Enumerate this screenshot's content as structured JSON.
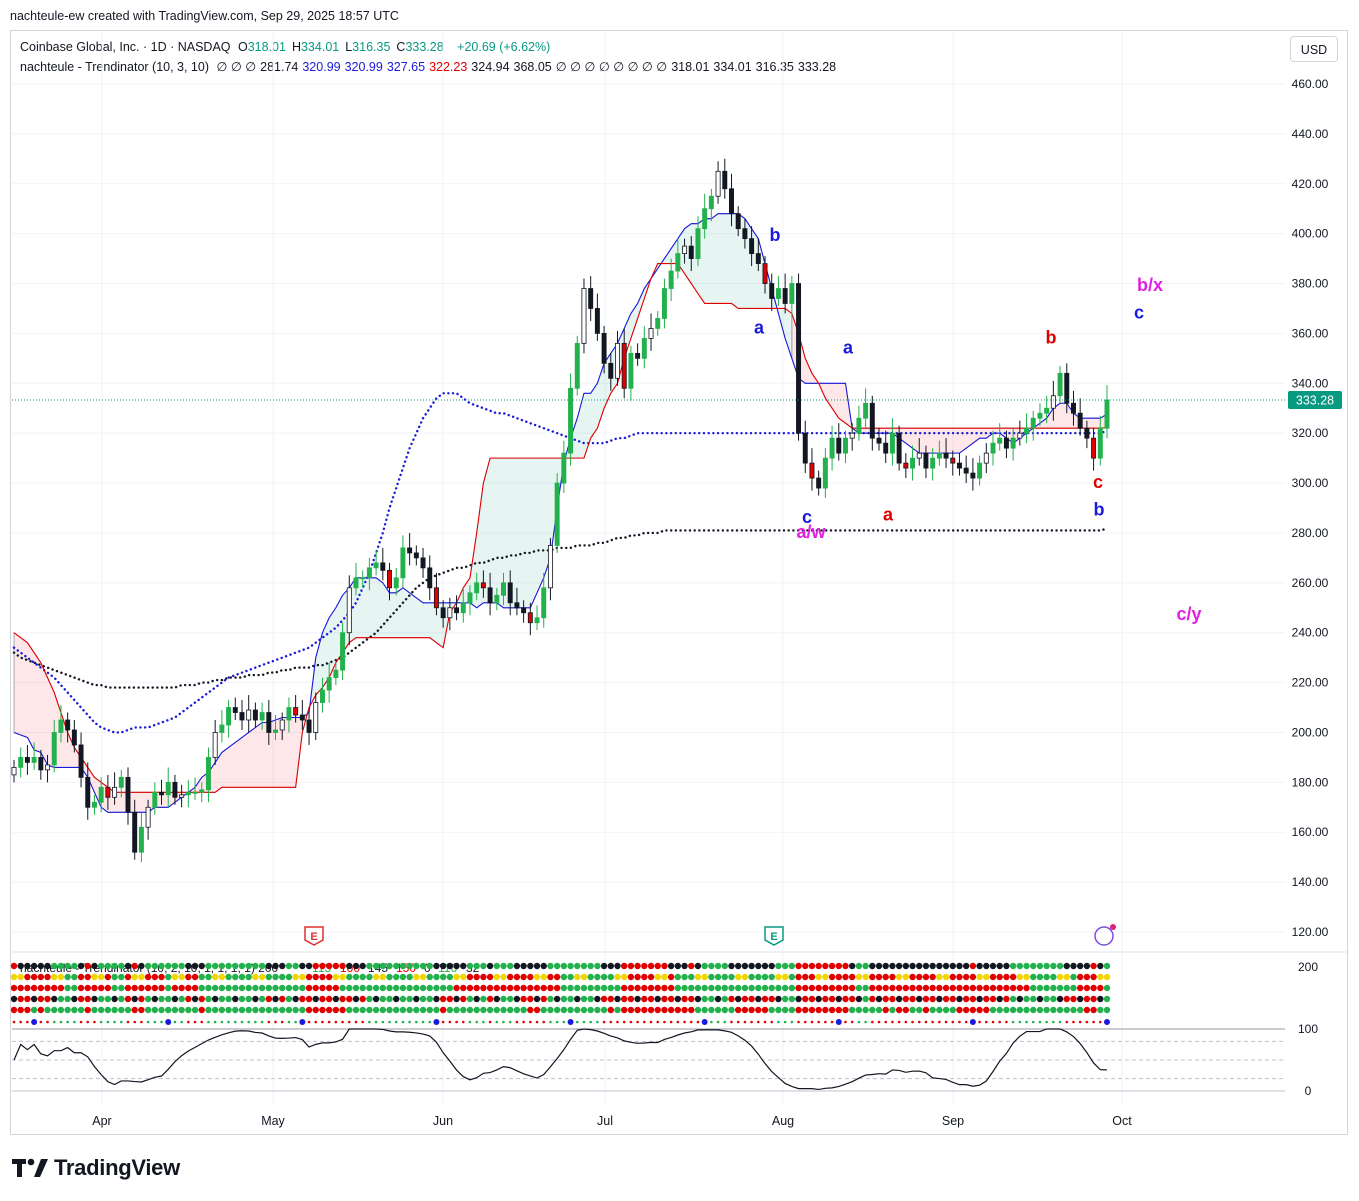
{
  "header": {
    "attribution": "nachteule-ew created with TradingView.com, Sep 29, 2025 18:57 UTC"
  },
  "legend": {
    "symbol": "Coinbase Global, Inc. · 1D · NASDAQ",
    "ohlc": [
      {
        "k": "O",
        "v": "318.01"
      },
      {
        "k": "H",
        "v": "334.01"
      },
      {
        "k": "L",
        "v": "316.35"
      },
      {
        "k": "C",
        "v": "333.28"
      }
    ],
    "change": "+20.69 (+6.62%)",
    "indicator_name": "nachteule - Trendinator (10, 3, 10)",
    "indicator_values": [
      {
        "v": "∅ ∅ ∅",
        "c": "#131722"
      },
      {
        "v": "281.74",
        "c": "#131722"
      },
      {
        "v": "320.99",
        "c": "#1a1adb"
      },
      {
        "v": "320.99",
        "c": "#1a1adb"
      },
      {
        "v": "327.65",
        "c": "#1a1adb"
      },
      {
        "v": "322.23",
        "c": "#e00000"
      },
      {
        "v": "324.94",
        "c": "#131722"
      },
      {
        "v": "368.05",
        "c": "#131722"
      },
      {
        "v": "∅ ∅ ∅ ∅ ∅ ∅ ∅ ∅",
        "c": "#131722"
      },
      {
        "v": "318.01",
        "c": "#131722"
      },
      {
        "v": "334.01",
        "c": "#131722"
      },
      {
        "v": "316.35",
        "c": "#131722"
      },
      {
        "v": "333.28",
        "c": "#131722"
      }
    ],
    "sub_indicator": "nachteule - Trendinator (10, 2, 10, 1, 1, 1, 1) 200",
    "sub_values": [
      "113",
      "100",
      "145",
      "150",
      "0",
      "116",
      "32"
    ]
  },
  "currency": "USD",
  "price_label": "333.28",
  "chart_data": {
    "type": "candlestick",
    "title": "Coinbase Global, Inc. · 1D · NASDAQ",
    "ylim": [
      115,
      465
    ],
    "y_ticks": [
      "460.00",
      "440.00",
      "420.00",
      "400.00",
      "380.00",
      "360.00",
      "340.00",
      "320.00",
      "300.00",
      "280.00",
      "260.00",
      "240.00",
      "220.00",
      "200.00",
      "180.00",
      "160.00",
      "140.00",
      "120.00"
    ],
    "x_ticks": [
      "Apr",
      "May",
      "Jun",
      "Jul",
      "Aug",
      "Sep",
      "Oct"
    ],
    "last_close": 333.28,
    "closes": [
      186,
      190,
      188,
      190,
      185,
      187,
      200,
      205,
      201,
      195,
      182,
      170,
      172,
      178,
      174,
      178,
      182,
      168,
      152,
      162,
      170,
      176,
      175,
      180,
      174,
      175,
      176,
      176,
      177,
      190,
      200,
      203,
      210,
      208,
      205,
      209,
      205,
      208,
      200,
      201,
      205,
      210,
      207,
      205,
      200,
      212,
      217,
      222,
      225,
      240,
      258,
      262,
      262,
      266,
      268,
      265,
      258,
      262,
      274,
      272,
      270,
      266,
      258,
      250,
      246,
      250,
      248,
      252,
      256,
      260,
      258,
      252,
      255,
      260,
      252,
      250,
      248,
      244,
      246,
      258,
      275,
      300,
      312,
      338,
      356,
      378,
      370,
      360,
      348,
      342,
      356,
      338,
      352,
      350,
      358,
      362,
      366,
      378,
      385,
      392,
      395,
      390,
      402,
      410,
      415,
      425,
      418,
      408,
      402,
      398,
      392,
      388,
      380,
      374,
      378,
      372,
      380,
      320,
      308,
      302,
      298,
      310,
      318,
      312,
      318,
      320,
      326,
      332,
      318,
      316,
      312,
      320,
      308,
      306,
      310,
      312,
      306,
      310,
      312,
      310,
      308,
      306,
      304,
      302,
      308,
      312,
      316,
      318,
      314,
      318,
      320,
      322,
      326,
      328,
      330,
      335,
      344,
      332,
      328,
      322,
      318,
      310,
      322,
      333.28
    ],
    "series": [
      {
        "name": "trend_blue",
        "values": [
          200,
          199,
          198,
          193,
          192,
          187,
          186,
          186,
          186,
          186,
          186,
          182,
          176,
          170,
          168,
          168,
          168,
          168,
          168,
          168,
          168,
          170,
          170,
          170,
          172,
          174,
          176,
          178,
          182,
          184,
          188,
          192,
          194,
          196,
          198,
          200,
          202,
          204,
          204,
          205,
          206,
          206,
          206,
          206,
          208,
          230,
          240,
          246,
          250,
          255,
          258,
          262,
          262,
          262,
          262,
          260,
          256,
          256,
          258,
          256,
          254,
          252,
          252,
          252,
          252,
          252,
          252,
          252,
          252,
          250,
          252,
          252,
          252,
          250,
          250,
          250,
          250,
          250,
          256,
          262,
          270,
          290,
          308,
          318,
          326,
          336,
          336,
          340,
          348,
          352,
          356,
          362,
          368,
          372,
          378,
          382,
          386,
          390,
          394,
          398,
          402,
          404,
          404,
          406,
          406,
          408,
          408,
          408,
          408,
          406,
          402,
          398,
          388,
          378,
          368,
          358,
          350,
          342,
          340,
          340,
          340,
          340,
          340,
          340,
          340,
          322,
          320,
          320,
          320,
          320,
          320,
          320,
          318,
          316,
          314,
          312,
          312,
          312,
          312,
          312,
          312,
          312,
          314,
          316,
          318,
          318,
          320,
          320,
          318,
          316,
          318,
          320,
          322,
          324,
          326,
          330,
          332,
          332,
          328,
          326,
          326,
          326,
          326,
          327.65
        ]
      },
      {
        "name": "trend_red",
        "values": [
          240,
          238,
          236,
          232,
          228,
          222,
          216,
          208,
          200,
          194,
          190,
          186,
          182,
          180,
          178,
          176,
          176,
          176,
          176,
          176,
          176,
          176,
          176,
          176,
          176,
          176,
          176,
          176,
          176,
          176,
          176,
          178,
          178,
          178,
          178,
          178,
          178,
          178,
          178,
          178,
          178,
          178,
          178,
          200,
          210,
          215,
          218,
          222,
          228,
          232,
          236,
          238,
          238,
          238,
          238,
          238,
          238,
          238,
          238,
          238,
          238,
          238,
          238,
          236,
          234,
          248,
          252,
          258,
          262,
          280,
          300,
          310,
          310,
          310,
          310,
          310,
          310,
          310,
          310,
          310,
          310,
          310,
          310,
          310,
          310,
          310,
          318,
          322,
          330,
          336,
          340,
          350,
          358,
          366,
          374,
          382,
          388,
          388,
          388,
          388,
          384,
          380,
          376,
          372,
          372,
          372,
          372,
          372,
          370,
          370,
          370,
          370,
          370,
          370,
          370,
          370,
          368,
          360,
          350,
          344,
          340,
          334,
          330,
          326,
          324,
          322,
          322,
          322,
          322,
          322,
          322,
          322,
          322,
          322,
          322,
          322,
          322,
          322,
          322,
          322,
          322,
          322,
          322,
          322,
          322,
          322,
          322,
          322,
          322,
          322,
          322,
          322,
          322,
          322,
          322,
          322,
          322,
          322,
          322,
          322,
          322,
          322,
          322,
          322.23
        ]
      },
      {
        "name": "ma_blue_dotted",
        "values": [
          234,
          232,
          230,
          228,
          226,
          224,
          222,
          219,
          216,
          213,
          210,
          207,
          204,
          202,
          201,
          200,
          200,
          201,
          202,
          202,
          202,
          203,
          204,
          205,
          206,
          208,
          210,
          212,
          214,
          216,
          218,
          220,
          222,
          223,
          224,
          225,
          226,
          227,
          228,
          229,
          230,
          231,
          232,
          233,
          234,
          236,
          238,
          240,
          242,
          245,
          248,
          252,
          258,
          264,
          272,
          280,
          290,
          298,
          306,
          314,
          320,
          326,
          330,
          334,
          336,
          336,
          336,
          334,
          332,
          331,
          330,
          329,
          328,
          328,
          327,
          326,
          325,
          324,
          323,
          322,
          321,
          320,
          319,
          318,
          317,
          316,
          316,
          316,
          316,
          317,
          318,
          318,
          319,
          320,
          320,
          320,
          320,
          320,
          320,
          320,
          320,
          320,
          320,
          320,
          320,
          320,
          320,
          320,
          320,
          320,
          320,
          320,
          320,
          320,
          320,
          320,
          320,
          320,
          320,
          320,
          320,
          320,
          320,
          320,
          320,
          320,
          320,
          320,
          320,
          320,
          320,
          320,
          320,
          320,
          320,
          320,
          320,
          320,
          320,
          320,
          320,
          320,
          320,
          320,
          320,
          320,
          320,
          320,
          320,
          320,
          320,
          320,
          320,
          320,
          320,
          320,
          320,
          320,
          320,
          320,
          320,
          320,
          320,
          320.99
        ]
      },
      {
        "name": "ma_black_dotted",
        "values": [
          232,
          230,
          229,
          228,
          227,
          226,
          225,
          224,
          223,
          222,
          221,
          220,
          219,
          219,
          218,
          218,
          218,
          218,
          218,
          218,
          218,
          218,
          218,
          218,
          218,
          219,
          219,
          219,
          220,
          220,
          221,
          221,
          222,
          222,
          222,
          223,
          223,
          223,
          224,
          224,
          225,
          225,
          226,
          226,
          226,
          227,
          227,
          228,
          229,
          230,
          232,
          234,
          236,
          238,
          240,
          243,
          246,
          249,
          252,
          255,
          258,
          260,
          262,
          263,
          264,
          265,
          266,
          266,
          267,
          268,
          268,
          269,
          270,
          270,
          271,
          271,
          272,
          272,
          273,
          273,
          273,
          274,
          274,
          274,
          275,
          275,
          275,
          276,
          276,
          277,
          278,
          278,
          279,
          279,
          280,
          280,
          280,
          281,
          281,
          281,
          281,
          281,
          281,
          281,
          281,
          281,
          281,
          281,
          281,
          281,
          281,
          281,
          281,
          281,
          281,
          281,
          281,
          281,
          281,
          281,
          281,
          281,
          281,
          281,
          281,
          281,
          281,
          281,
          281,
          281,
          281,
          281,
          281,
          281,
          281,
          281,
          281,
          281,
          281,
          281,
          281,
          281,
          281,
          281,
          281,
          281,
          281,
          281,
          281,
          281,
          281,
          281,
          281,
          281,
          281,
          281,
          281,
          281,
          281,
          281,
          281,
          281,
          281,
          281.74
        ]
      }
    ],
    "annotations": [
      {
        "text": "b",
        "color": "#1a1adb",
        "price": 397
      },
      {
        "text": "a",
        "color": "#1a1adb",
        "price": 360
      },
      {
        "text": "a",
        "color": "#1a1adb",
        "price": 352
      },
      {
        "text": "c",
        "color": "#1a1adb",
        "price": 284
      },
      {
        "text": "a/w",
        "color": "#e020e0",
        "price": 278
      },
      {
        "text": "a",
        "color": "#e00000",
        "price": 285
      },
      {
        "text": "b",
        "color": "#e00000",
        "price": 356
      },
      {
        "text": "c",
        "color": "#e00000",
        "price": 298
      },
      {
        "text": "b",
        "color": "#1a1adb",
        "price": 287
      },
      {
        "text": "b/x",
        "color": "#e020e0",
        "price": 377
      },
      {
        "text": "c",
        "color": "#1a1adb",
        "price": 366
      },
      {
        "text": "c/y",
        "color": "#e020e0",
        "price": 245
      }
    ],
    "events": [
      {
        "label": "E",
        "color": "#e03030"
      },
      {
        "label": "E",
        "color": "#089981"
      }
    ],
    "oscillator": {
      "y_ticks": [
        "200",
        "100",
        "0"
      ],
      "levels": [
        100,
        80,
        50,
        20
      ]
    }
  }
}
